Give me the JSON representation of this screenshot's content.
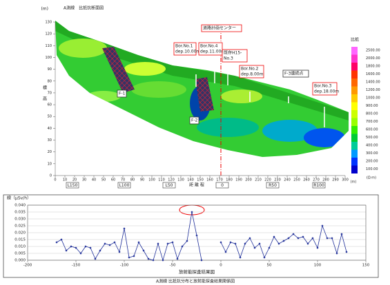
{
  "chart_data": [
    {
      "type": "section",
      "title": "A測線　比抵抗断面図",
      "y_unit": "(m)",
      "ylabel": "標高",
      "xlabel": "距 離 程",
      "x_unit": "(m)",
      "xlim": [
        0,
        300
      ],
      "xticks": [
        0,
        10,
        20,
        30,
        40,
        50,
        60,
        70,
        80,
        90,
        100,
        110,
        120,
        130,
        140,
        150,
        160,
        170,
        180,
        190,
        200,
        210,
        220,
        230,
        240,
        250,
        260,
        270,
        280,
        290,
        300
      ],
      "ylim": [
        0,
        130
      ],
      "yticks": [
        0,
        10,
        20,
        30,
        40,
        50,
        60,
        70,
        80,
        90,
        100,
        110,
        120,
        130
      ],
      "stations": [
        "L150",
        "L100",
        "L50",
        "0",
        "R50",
        "R100"
      ],
      "annotations": [
        {
          "lines": [
            "道路計画センター"
          ]
        },
        {
          "lines": [
            "Bor.No.1",
            "dep.10.00m"
          ]
        },
        {
          "lines": [
            "Bor.No.4",
            "dep.11.00m"
          ]
        },
        {
          "lines": [
            "既存H15-",
            "No.3"
          ]
        },
        {
          "lines": [
            "Bor.No.2",
            "dep.8.00m"
          ]
        },
        {
          "lines": [
            "F-3連続点"
          ]
        },
        {
          "lines": [
            "Bor.No.3",
            "dep.18.00m"
          ]
        },
        {
          "lines": [
            "F-1"
          ]
        },
        {
          "lines": [
            "F-2"
          ]
        }
      ],
      "colorbar_title": "比抵",
      "colorbar_unit": "(Ω·m)",
      "colorbar_ticks": [
        {
          "value": 2500,
          "label": "2500.00"
        },
        {
          "value": 2000,
          "label": "2000.00"
        },
        {
          "value": 1800,
          "label": "1800.00"
        },
        {
          "value": 1600,
          "label": "1600.00"
        },
        {
          "value": 1400,
          "label": "1400.00"
        },
        {
          "value": 1200,
          "label": "1200.00"
        },
        {
          "value": 1000,
          "label": "1000.00"
        },
        {
          "value": 900,
          "label": "900.00"
        },
        {
          "value": 800,
          "label": "800.00"
        },
        {
          "value": 700,
          "label": "700.00"
        },
        {
          "value": 600,
          "label": "600.00"
        },
        {
          "value": 500,
          "label": "500.00"
        },
        {
          "value": 400,
          "label": "400.00"
        },
        {
          "value": 300,
          "label": "300.00"
        },
        {
          "value": 200,
          "label": "200.00"
        },
        {
          "value": 100,
          "label": "100.00"
        }
      ],
      "colorbar_colors": [
        "#ff66ff",
        "#ff33cc",
        "#ff0066",
        "#ff3300",
        "#ff6600",
        "#ff9900",
        "#ffcc00",
        "#ffff00",
        "#ccff00",
        "#99ff00",
        "#33ee00",
        "#00cc33",
        "#00cc99",
        "#0099ff",
        "#0033ff",
        "#0000cc"
      ]
    },
    {
      "type": "line",
      "title": "放射能探査結果図",
      "ylabel": "線（μSv/h）",
      "caption": "A測線 比抵抗分布と放射能探査結果関係図",
      "xlim": [
        -200,
        150
      ],
      "xticks": [
        -200,
        -150,
        -100,
        -50,
        0,
        50,
        100,
        150
      ],
      "ylim": [
        0,
        0.04
      ],
      "yticks": [
        {
          "value": 0,
          "label": "0.000"
        },
        {
          "value": 0.005,
          "label": "0.005"
        },
        {
          "value": 0.01,
          "label": "0.010"
        },
        {
          "value": 0.015,
          "label": "0.015"
        },
        {
          "value": 0.02,
          "label": "0.020"
        },
        {
          "value": 0.025,
          "label": "0.025"
        },
        {
          "value": 0.03,
          "label": "0.030"
        },
        {
          "value": 0.035,
          "label": "0.035"
        },
        {
          "value": 0.04,
          "label": "0.040"
        }
      ],
      "grid": true,
      "x": [
        -170,
        -165,
        -160,
        -155,
        -150,
        -145,
        -140,
        -135,
        -130,
        -125,
        -120,
        -115,
        -110,
        -105,
        -100,
        -95,
        -90,
        -85,
        -80,
        -75,
        -70,
        -65,
        -60,
        -55,
        -50,
        -45,
        -40,
        -35,
        -30,
        -25,
        -20,
        -15,
        -10,
        -5,
        0,
        5,
        10,
        15,
        20,
        25,
        30,
        35,
        40,
        45,
        50,
        55,
        60,
        65,
        70,
        75,
        80,
        85,
        90,
        95,
        100,
        105,
        110,
        115,
        120,
        125,
        130
      ],
      "series": [
        {
          "color": "#1f2f99",
          "values": [
            0.013,
            0.015,
            0.007,
            0.01,
            0.009,
            0.005,
            0.01,
            0.009,
            0.001,
            0.007,
            0.012,
            0.011,
            0.013,
            0.006,
            0.023,
            0.002,
            0.003,
            0.013,
            0.007,
            0.001,
            0.0,
            0.012,
            0.0,
            0.012,
            0.013,
            0.001,
            0.01,
            0.014,
            0.035,
            0.018,
            0.0,
            null,
            null,
            null,
            0.013,
            0.006,
            0.013,
            0.012,
            0.002,
            0.012,
            0.016,
            0.009,
            0.012,
            0.002,
            0.009,
            0.017,
            0.012,
            0.014,
            0.016,
            0.019,
            0.016,
            0.017,
            0.012,
            0.016,
            0.009,
            0.025,
            0.016,
            0.016,
            0.005,
            0.019,
            0.006
          ]
        }
      ]
    }
  ]
}
